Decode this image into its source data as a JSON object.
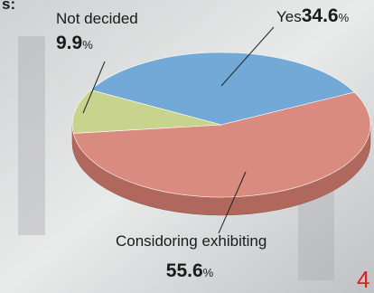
{
  "chart_data": {
    "type": "pie",
    "categories": [
      "Yes",
      "Considoring exhibiting",
      "Not decided"
    ],
    "values": [
      34.6,
      55.6,
      9.9
    ],
    "unit": "%",
    "colors": [
      "#72a9d6",
      "#d98b7f",
      "#c8d48e"
    ],
    "annotations": [
      "s:",
      "4"
    ]
  }
}
